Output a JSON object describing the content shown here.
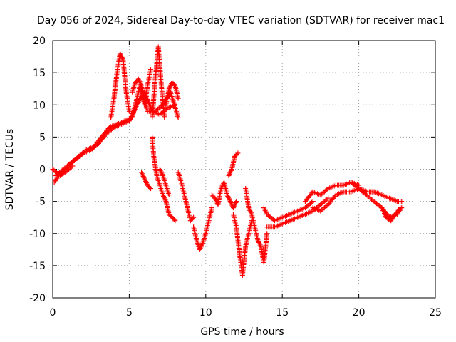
{
  "chart_data": {
    "type": "scatter",
    "title": "Day 056 of 2024, Sidereal Day-to-day VTEC variation (SDTVAR) for receiver mac1",
    "xlabel": "GPS time / hours",
    "ylabel": "SDTVAR / TECUs",
    "xlim": [
      0,
      25
    ],
    "ylim": [
      -20,
      20
    ],
    "xticks": [
      0,
      5,
      10,
      15,
      20,
      25
    ],
    "yticks": [
      -20,
      -15,
      -10,
      -5,
      0,
      5,
      10,
      15,
      20
    ],
    "grid": true,
    "marker": "+",
    "color": "#ff0000",
    "series": [
      {
        "name": "SDTVAR",
        "segments": [
          {
            "x": [
              0,
              0.5,
              1,
              1.5,
              2,
              2.5,
              3,
              3.5,
              4,
              4.5,
              5,
              5.5,
              6,
              6.5,
              7,
              7.5,
              8
            ],
            "y": [
              0,
              -1,
              0.5,
              1.5,
              2.5,
              3,
              4,
              5.5,
              6.5,
              7,
              7.5,
              10,
              12,
              9,
              8.5,
              9.5,
              10
            ]
          },
          {
            "x": [
              0.2,
              0.7,
              1.2,
              1.7,
              2.2,
              2.7,
              3.2,
              3.7,
              4.2,
              4.7,
              5.2,
              5.7,
              6.2,
              6.7,
              7.2,
              7.7,
              8.2
            ],
            "y": [
              -1,
              0,
              1,
              2,
              3,
              3.5,
              5,
              6.5,
              7,
              7.5,
              8,
              13,
              9,
              9,
              10,
              12,
              8
            ]
          },
          {
            "x": [
              0.1,
              0.4,
              0.8,
              1.3
            ],
            "y": [
              -2,
              -1,
              -0.5,
              0.5
            ]
          },
          {
            "x": [
              3.8,
              4.0,
              4.2,
              4.4,
              4.6,
              4.8,
              5.0
            ],
            "y": [
              8,
              11,
              15,
              18,
              17,
              12,
              9
            ]
          },
          {
            "x": [
              5.2,
              5.4,
              5.6,
              5.8,
              6.0,
              6.2,
              6.4
            ],
            "y": [
              12,
              13.5,
              14,
              13,
              10,
              13,
              15.5
            ]
          },
          {
            "x": [
              6.5,
              6.7,
              6.9,
              7.1,
              7.3
            ],
            "y": [
              8,
              14,
              19,
              13,
              8
            ]
          },
          {
            "x": [
              7.4,
              7.6,
              7.8,
              8.0,
              8.2
            ],
            "y": [
              10,
              12.5,
              13.5,
              13,
              11
            ]
          },
          {
            "x": [
              5.8,
              6.0,
              6.2,
              6.4
            ],
            "y": [
              -0.5,
              -1.5,
              -2.5,
              -3
            ]
          },
          {
            "x": [
              6.5,
              6.6,
              6.8,
              7.0,
              7.2,
              7.4,
              7.6,
              7.8,
              8.0
            ],
            "y": [
              5,
              2,
              -1,
              -2.5,
              -4,
              -5,
              -7,
              -7.5,
              -8
            ]
          },
          {
            "x": [
              7.0,
              7.2,
              7.4,
              7.6
            ],
            "y": [
              0,
              -1,
              -2.5,
              -4
            ]
          },
          {
            "x": [
              8.2,
              8.4,
              8.6,
              8.8,
              9.0,
              9.2
            ],
            "y": [
              -0.5,
              -2,
              -4,
              -6,
              -8,
              -7.5
            ]
          },
          {
            "x": [
              9.2,
              9.4,
              9.6,
              9.8,
              10.0,
              10.2,
              10.4
            ],
            "y": [
              -9,
              -11,
              -12.5,
              -11.5,
              -10,
              -8,
              -6
            ]
          },
          {
            "x": [
              10.4,
              10.6,
              10.8,
              11.0,
              11.2,
              11.4,
              11.6,
              11.8,
              12.0
            ],
            "y": [
              -4,
              -4.5,
              -5.5,
              -3,
              -2,
              -4,
              -5,
              -6,
              -5
            ]
          },
          {
            "x": [
              11.5,
              11.7,
              11.9,
              12.1
            ],
            "y": [
              -1,
              0,
              2,
              2.5
            ]
          },
          {
            "x": [
              11.8,
              12.0,
              12.2,
              12.4,
              12.6,
              12.8,
              13.0
            ],
            "y": [
              -7,
              -9,
              -13,
              -16.5,
              -12,
              -10,
              -8
            ]
          },
          {
            "x": [
              12.6,
              12.8,
              13.0,
              13.2,
              13.4,
              13.6,
              13.8,
              14.0
            ],
            "y": [
              -3,
              -6,
              -7,
              -9,
              -11,
              -12,
              -14.5,
              -10
            ]
          },
          {
            "x": [
              13.8,
              14.0,
              14.5,
              15.0,
              15.5,
              16.0,
              16.5,
              17.0
            ],
            "y": [
              -6,
              -7,
              -8,
              -7.5,
              -7,
              -6.5,
              -6,
              -5
            ]
          },
          {
            "x": [
              14.0,
              14.5,
              15.0,
              15.5,
              16.0,
              16.5,
              17.0,
              17.5,
              18.0
            ],
            "y": [
              -9,
              -9,
              -8.5,
              -8,
              -7.5,
              -7,
              -6.5,
              -5.5,
              -4.5
            ]
          },
          {
            "x": [
              16.5,
              17.0,
              17.5,
              18.0,
              18.5,
              19.0,
              19.5,
              20.0
            ],
            "y": [
              -5,
              -3.5,
              -4,
              -3,
              -2.5,
              -2.5,
              -2,
              -2.5
            ]
          },
          {
            "x": [
              17.0,
              17.5,
              18.0,
              18.5,
              19.0,
              19.5,
              20.0,
              20.5,
              21.0
            ],
            "y": [
              -6,
              -6.5,
              -5.5,
              -4,
              -3.5,
              -3.5,
              -3,
              -3.5,
              -3.5
            ]
          },
          {
            "x": [
              19.5,
              20.0,
              20.5,
              21.0,
              21.5,
              22.0,
              22.5,
              22.8
            ],
            "y": [
              -2,
              -3,
              -3.5,
              -3.5,
              -4,
              -4.5,
              -5,
              -5
            ]
          },
          {
            "x": [
              20.0,
              20.5,
              21.0,
              21.5,
              22.0,
              22.5,
              22.8
            ],
            "y": [
              -3,
              -4,
              -5,
              -6,
              -7.5,
              -7,
              -6
            ]
          },
          {
            "x": [
              21.5,
              21.8,
              22.1,
              22.4,
              22.7
            ],
            "y": [
              -6,
              -7.5,
              -8,
              -7,
              -6
            ]
          }
        ]
      }
    ]
  }
}
